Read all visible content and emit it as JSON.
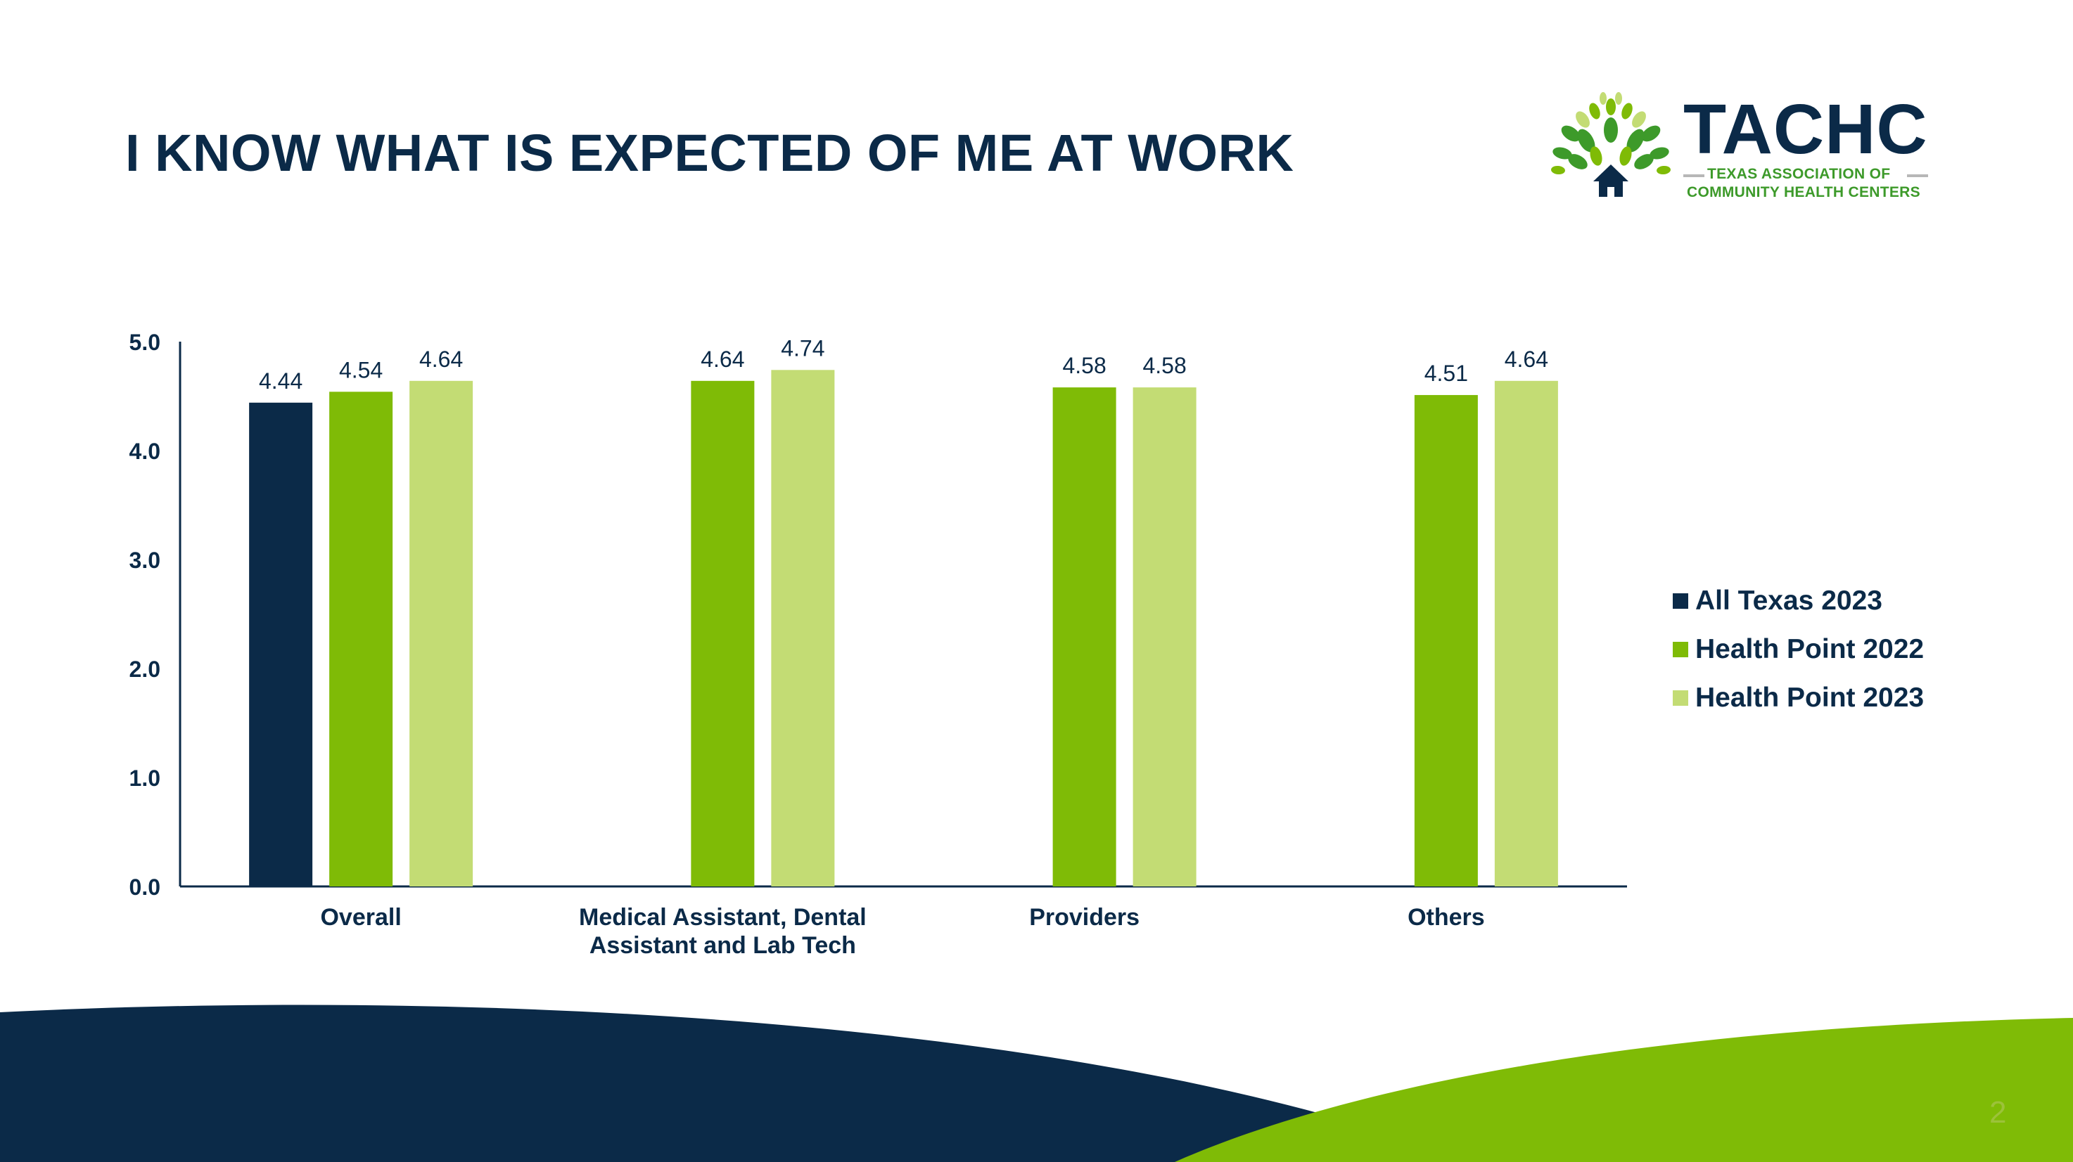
{
  "slide": {
    "title": "I KNOW WHAT IS EXPECTED OF ME AT WORK",
    "page_number": "2"
  },
  "logo": {
    "wordmark": "TACHC",
    "line1": "TEXAS ASSOCIATION OF",
    "line2": "COMMUNITY HEALTH CENTERS"
  },
  "colors": {
    "navy": "#0b2a48",
    "green": "#7fbb06",
    "light_green": "#c3dc74",
    "footer_green": "#7fbb06"
  },
  "chart_data": {
    "type": "bar",
    "title": "",
    "xlabel": "",
    "ylabel": "",
    "ylim": [
      0,
      5
    ],
    "yticks": [
      "0.0",
      "1.0",
      "2.0",
      "3.0",
      "4.0",
      "5.0"
    ],
    "grid": false,
    "legend_position": "right",
    "categories": [
      [
        "Overall"
      ],
      [
        "Medical Assistant, Dental",
        "Assistant and Lab Tech"
      ],
      [
        "Providers"
      ],
      [
        "Others"
      ]
    ],
    "series": [
      {
        "name": "All Texas 2023",
        "color": "#0b2a48",
        "values": [
          4.44,
          null,
          null,
          null
        ],
        "labels": [
          "4.44",
          null,
          null,
          null
        ]
      },
      {
        "name": "Health Point 2022",
        "color": "#7fbb06",
        "values": [
          4.54,
          4.64,
          4.58,
          4.51
        ],
        "labels": [
          "4.54",
          "4.64",
          "4.58",
          "4.51"
        ]
      },
      {
        "name": "Health Point 2023",
        "color": "#c3dc74",
        "values": [
          4.64,
          4.74,
          4.58,
          4.64
        ],
        "labels": [
          "4.64",
          "4.74",
          "4.58",
          "4.64"
        ]
      }
    ]
  }
}
